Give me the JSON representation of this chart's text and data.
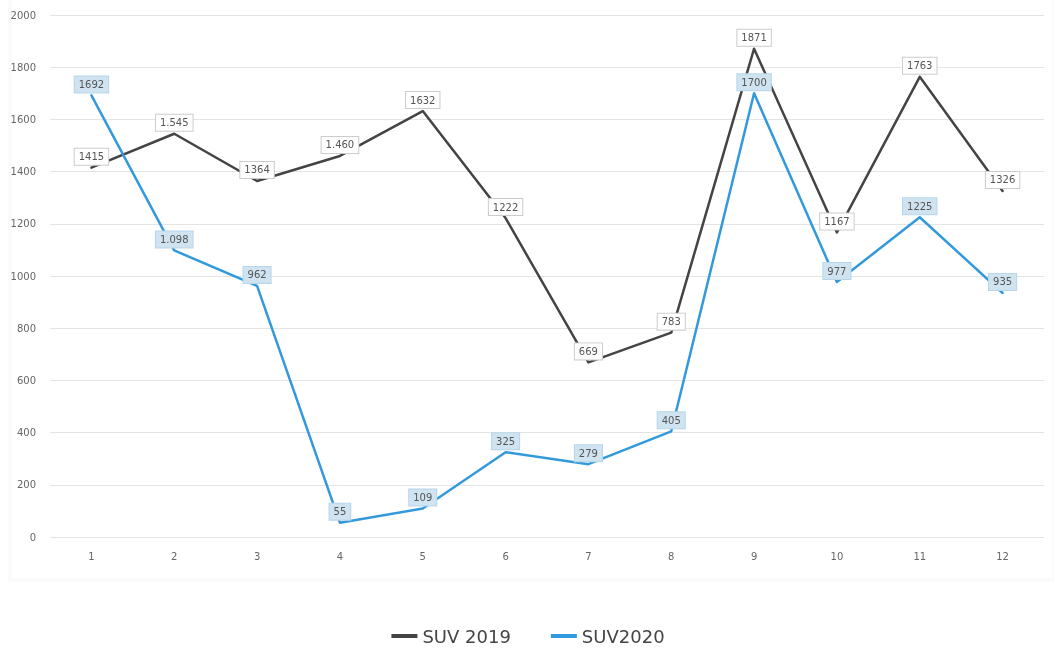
{
  "chart_data": {
    "type": "line",
    "categories": [
      "1",
      "2",
      "3",
      "4",
      "5",
      "6",
      "7",
      "8",
      "9",
      "10",
      "11",
      "12"
    ],
    "series": [
      {
        "name": "SUV 2019",
        "color": "#444444",
        "values": [
          1415,
          1545,
          1364,
          1460,
          1632,
          1222,
          669,
          783,
          1871,
          1167,
          1763,
          1326
        ],
        "value_labels": [
          "1415",
          "1.545",
          "1364",
          "1.460",
          "1632",
          "1222",
          "669",
          "783",
          "1871",
          "1167",
          "1763",
          "1326"
        ]
      },
      {
        "name": "SUV2020",
        "color": "#3399dd",
        "values": [
          1692,
          1098,
          962,
          55,
          109,
          325,
          279,
          405,
          1700,
          977,
          1225,
          935
        ],
        "value_labels": [
          "1692",
          "1.098",
          "962",
          "55",
          "109",
          "325",
          "279",
          "405",
          "1700",
          "977",
          "1225",
          "935"
        ]
      }
    ],
    "ylim": [
      0,
      2000
    ],
    "yticks": [
      0,
      200,
      400,
      600,
      800,
      1000,
      1200,
      1400,
      1600,
      1800,
      2000
    ],
    "grid": "y",
    "legend": "bottom",
    "marker": "none",
    "line_style": "solid"
  }
}
